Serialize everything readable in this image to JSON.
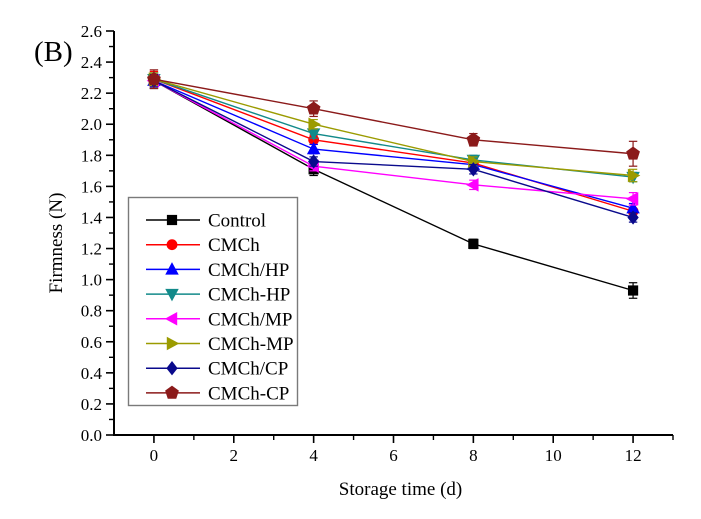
{
  "panel_label": "(B)",
  "chart_data": {
    "type": "line",
    "title": "",
    "xlabel": "Storage time (d)",
    "ylabel": "Firmness (N)",
    "x": [
      0,
      4,
      8,
      12
    ],
    "xlim": [
      -1,
      13
    ],
    "ylim": [
      0.0,
      2.6
    ],
    "x_major_ticks": [
      0,
      2,
      4,
      6,
      8,
      10,
      12
    ],
    "x_minor_ticks": [
      1,
      3,
      5,
      7,
      9,
      11,
      13
    ],
    "y_major_step": 0.2,
    "y_minor_step": 0.1,
    "y_tick_decimals": 1,
    "grid": "off",
    "legend_position": "middle-left",
    "error_bars": true,
    "series": [
      {
        "name": "Control",
        "color": "#000000",
        "marker": "square",
        "values": [
          2.28,
          1.71,
          1.23,
          0.93
        ],
        "errors": [
          0.05,
          0.04,
          0.03,
          0.05
        ]
      },
      {
        "name": "CMCh",
        "color": "#FF0000",
        "marker": "circle",
        "values": [
          2.29,
          1.9,
          1.75,
          1.44
        ],
        "errors": [
          0.05,
          0.03,
          0.03,
          0.04
        ]
      },
      {
        "name": "CMCh/HP",
        "color": "#0000FF",
        "marker": "triangle-up",
        "values": [
          2.28,
          1.84,
          1.74,
          1.46
        ],
        "errors": [
          0.04,
          0.03,
          0.03,
          0.03
        ]
      },
      {
        "name": "CMCh-HP",
        "color": "#128A8A",
        "marker": "triangle-down",
        "values": [
          2.29,
          1.94,
          1.77,
          1.66
        ],
        "errors": [
          0.04,
          0.03,
          0.03,
          0.03
        ]
      },
      {
        "name": "CMCh/MP",
        "color": "#FF00FF",
        "marker": "triangle-left",
        "values": [
          2.28,
          1.73,
          1.61,
          1.52
        ],
        "errors": [
          0.04,
          0.03,
          0.03,
          0.04
        ]
      },
      {
        "name": "CMCh-MP",
        "color": "#9B9B00",
        "marker": "triangle-right",
        "values": [
          2.29,
          2.0,
          1.76,
          1.67
        ],
        "errors": [
          0.04,
          0.03,
          0.03,
          0.04
        ]
      },
      {
        "name": "CMCh/CP",
        "color": "#0A0A8C",
        "marker": "diamond",
        "values": [
          2.28,
          1.76,
          1.71,
          1.4
        ],
        "errors": [
          0.04,
          0.03,
          0.03,
          0.03
        ]
      },
      {
        "name": "CMCh-CP",
        "color": "#8B1A1A",
        "marker": "pentagon",
        "values": [
          2.29,
          2.1,
          1.9,
          1.81
        ],
        "errors": [
          0.06,
          0.05,
          0.04,
          0.08
        ]
      }
    ]
  }
}
